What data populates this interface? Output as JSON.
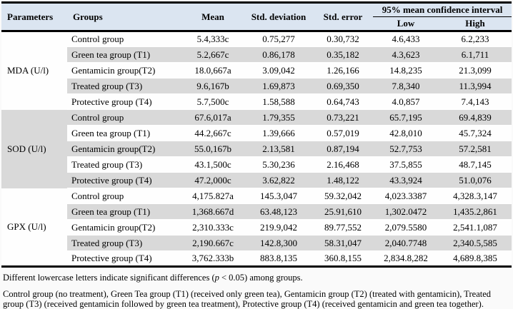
{
  "header": {
    "parameters": "Parameters",
    "groups": "Groups",
    "mean": "Mean",
    "std_deviation": "Std. deviation",
    "std_error": "Std. error",
    "ci_title": "95% mean confidence interval",
    "ci_low": "Low",
    "ci_high": "High"
  },
  "sections": [
    {
      "parameter": "MDA (U/l)",
      "rows": [
        {
          "group": "Control group",
          "mean": "5.4,333c",
          "sd": "0.75,277",
          "se": "0.30,732",
          "low": "4.6,433",
          "high": "6.2,233"
        },
        {
          "group": "Green tea group (T1)",
          "mean": "5.2,667c",
          "sd": "0.86,178",
          "se": "0.35,182",
          "low": "4.3,623",
          "high": "6.1,711"
        },
        {
          "group": "Gentamicin group(T2)",
          "mean": "18.0,667a",
          "sd": "3.09,042",
          "se": "1.26,166",
          "low": "14.8,235",
          "high": "21.3,099"
        },
        {
          "group": "Treated group  (T3)",
          "mean": "9.6,167b",
          "sd": "1.69,873",
          "se": "0.69,350",
          "low": "7.8,340",
          "high": "11.3,994"
        },
        {
          "group": "Protective group (T4)",
          "mean": "5.7,500c",
          "sd": "1.58,588",
          "se": "0.64,743",
          "low": "4.0,857",
          "high": "7.4,143"
        }
      ]
    },
    {
      "parameter": "SOD (U/l)",
      "rows": [
        {
          "group": "Control group",
          "mean": "67.6,017a",
          "sd": "1.79,355",
          "se": "0.73,221",
          "low": "65.7,195",
          "high": "69.4,839"
        },
        {
          "group": "Green tea group (T1)",
          "mean": "44.2,667c",
          "sd": "1.39,666",
          "se": "0.57,019",
          "low": "42.8,010",
          "high": "45.7,324"
        },
        {
          "group": "Gentamicin group(T2)",
          "mean": "55.0,167b",
          "sd": "2.13,581",
          "se": "0.87,194",
          "low": "52.7,753",
          "high": "57.2,581"
        },
        {
          "group": "Treated group  (T3)",
          "mean": "43.1,500c",
          "sd": "5.30,236",
          "se": "2.16,468",
          "low": "37.5,855",
          "high": "48.7,145"
        },
        {
          "group": "Protective group (T4)",
          "mean": "47.2,000c",
          "sd": "3.62,822",
          "se": "1.48,122",
          "low": "43.3,924",
          "high": "51.0,076"
        }
      ]
    },
    {
      "parameter": "GPX (U/l)",
      "rows": [
        {
          "group": "Control group",
          "mean": "4,175.827a",
          "sd": "145.3,047",
          "se": "59.32,042",
          "low": "4,023.3387",
          "high": "4,328.3,147"
        },
        {
          "group": "Green tea group (T1)",
          "mean": "1,368.667d",
          "sd": "63.48,123",
          "se": "25.91,610",
          "low": "1,302.0472",
          "high": "1,435.2,861"
        },
        {
          "group": "Gentamicin group(T2)",
          "mean": "2,310.333c",
          "sd": "219.9,042",
          "se": "89.77,552",
          "low": "2,079.5580",
          "high": "2,541.1,087"
        },
        {
          "group": "Treated group  (T3)",
          "mean": "2,190.667c",
          "sd": "142.8,300",
          "se": "58.31,047",
          "low": "2,040.7748",
          "high": "2,340.5,585"
        },
        {
          "group": "Protective group (T4)",
          "mean": "3,762.333b",
          "sd": "883.8,135",
          "se": "360.8,155",
          "low": "2,834.8,282",
          "high": "4,689.8,385"
        }
      ]
    }
  ],
  "footnotes": {
    "note1_pre": "Different lowercase letters indicate significant differences (",
    "note1_italic": "p",
    "note1_post": " < 0.05) among groups.",
    "note2": "Control group (no treatment), Green Tea group (T1) (received only green tea), Gentamicin group (T2) (treated with gentamicin), Treated group (T3) (received gentamicin followed by green tea treatment), Protective group (T4) (received gentamicin and green tea together)."
  },
  "colors": {
    "header_bg": "#dbe5f1",
    "row_gray": "#d9d9d9",
    "row_white": "#fefefe",
    "rule_black": "#000000"
  }
}
